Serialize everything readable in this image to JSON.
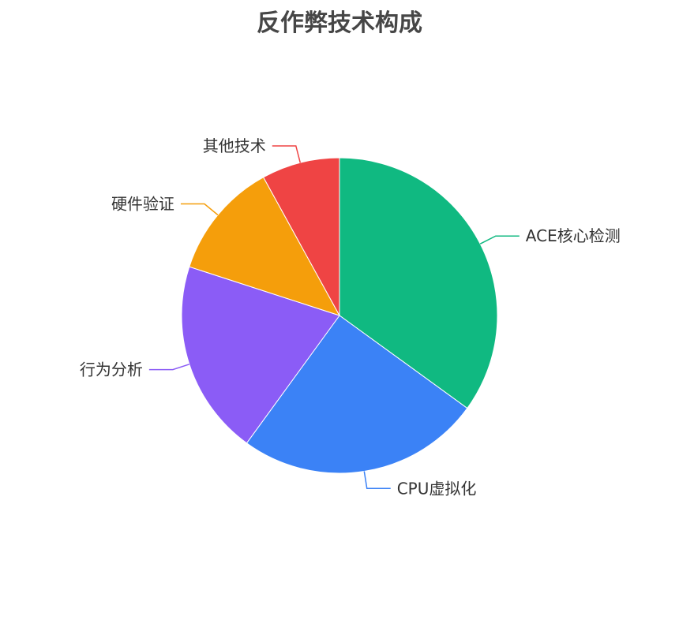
{
  "chart_data": {
    "type": "pie",
    "title": "反作弊技术构成",
    "start": "top",
    "direction": "clockwise",
    "slices": [
      {
        "label": "ACE核心检测",
        "value": 35,
        "color": "#10b981"
      },
      {
        "label": "CPU虚拟化",
        "value": 25,
        "color": "#3b82f6"
      },
      {
        "label": "行为分析",
        "value": 20,
        "color": "#8b5cf6"
      },
      {
        "label": "硬件验证",
        "value": 12,
        "color": "#f59e0b"
      },
      {
        "label": "其他技术",
        "value": 8,
        "color": "#ef4444"
      }
    ]
  }
}
